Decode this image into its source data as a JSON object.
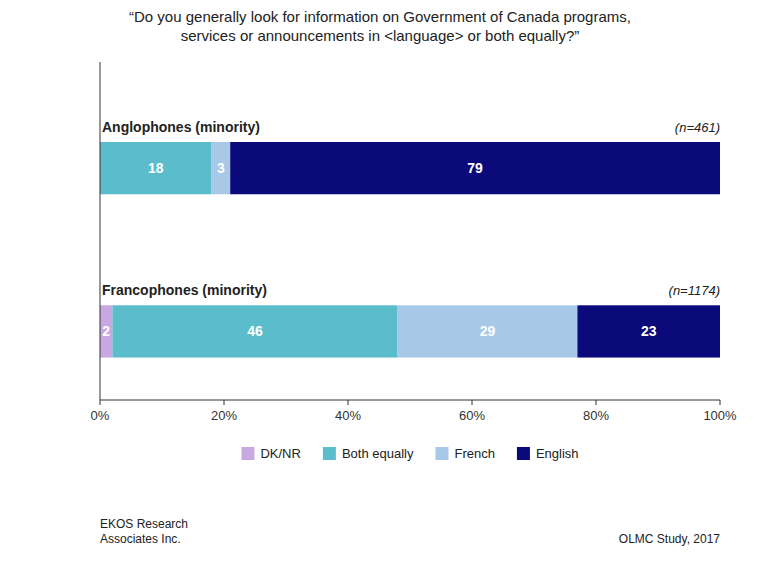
{
  "chart_data": {
    "type": "bar",
    "orientation": "horizontal",
    "stacked": true,
    "title": "“Do you generally look for information on Government of Canada programs,",
    "subtitle": "services or announcements in <language> or both equally?”",
    "categories": [
      "Anglophones (minority)",
      "Francophones (minority)"
    ],
    "series": [
      {
        "name": "DK/NR",
        "color": "#c8a8e0",
        "values": [
          0,
          2
        ]
      },
      {
        "name": "Both equally",
        "color": "#5bbccc",
        "values": [
          18,
          46
        ]
      },
      {
        "name": "French",
        "color": "#a8c8e8",
        "values": [
          3,
          29
        ]
      },
      {
        "name": "English",
        "color": "#0a0a7a",
        "values": [
          79,
          23
        ]
      }
    ],
    "xlim": [
      0,
      100
    ],
    "xticks": [
      {
        "value": 0,
        "label": "0%"
      },
      {
        "value": 20,
        "label": "20%"
      },
      {
        "value": 40,
        "label": "40%"
      },
      {
        "value": 60,
        "label": "60%"
      },
      {
        "value": 80,
        "label": "80%"
      },
      {
        "value": 100,
        "label": "100%"
      }
    ],
    "annotations": [
      "(n=461)",
      "(n=1174)",
      "EKOS Research\nAssociates Inc.",
      "OLMC Study, 2017"
    ],
    "data_labels": true,
    "legend": "bottom",
    "grid": false
  }
}
